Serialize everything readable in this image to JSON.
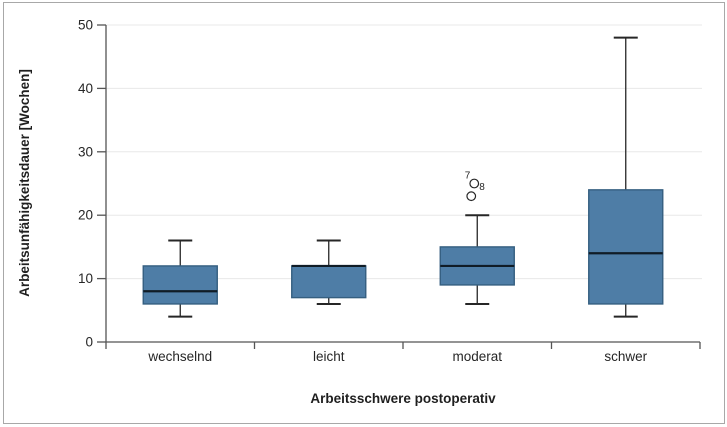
{
  "window": {
    "background": "#ffffff",
    "border_color": "#a8a8a8"
  },
  "chart_data": {
    "type": "boxplot",
    "title": "",
    "xlabel": "Arbeitsschwere postoperativ",
    "ylabel": "Arbeitsunfähigkeitsdauer [Wochen]",
    "ylim": [
      0,
      50
    ],
    "yticks": [
      0,
      10,
      20,
      30,
      40,
      50
    ],
    "grid": "horizontal",
    "legend": "none",
    "categories": [
      "wechselnd",
      "leicht",
      "moderat",
      "schwer"
    ],
    "series": [
      {
        "category": "wechselnd",
        "min": 4,
        "q1": 6,
        "median": 8,
        "q3": 12,
        "max": 16,
        "outliers": []
      },
      {
        "category": "leicht",
        "min": 6,
        "q1": 7,
        "median": 12,
        "q3": 12,
        "max": 16,
        "outliers": []
      },
      {
        "category": "moderat",
        "min": 6,
        "q1": 9,
        "median": 12,
        "q3": 15,
        "max": 20,
        "outliers": [
          {
            "label": "7",
            "value": 25
          },
          {
            "label": "8",
            "value": 23
          }
        ]
      },
      {
        "category": "schwer",
        "min": 4,
        "q1": 6,
        "median": 14,
        "q3": 24,
        "max": 48,
        "outliers": []
      }
    ],
    "colors": {
      "box_fill": "#4e7da6",
      "box_border": "#355f80",
      "median": "#101c26",
      "whisker": "#262626",
      "grid": "#e8e8e8",
      "axis": "#555555",
      "text": "#262626"
    }
  }
}
